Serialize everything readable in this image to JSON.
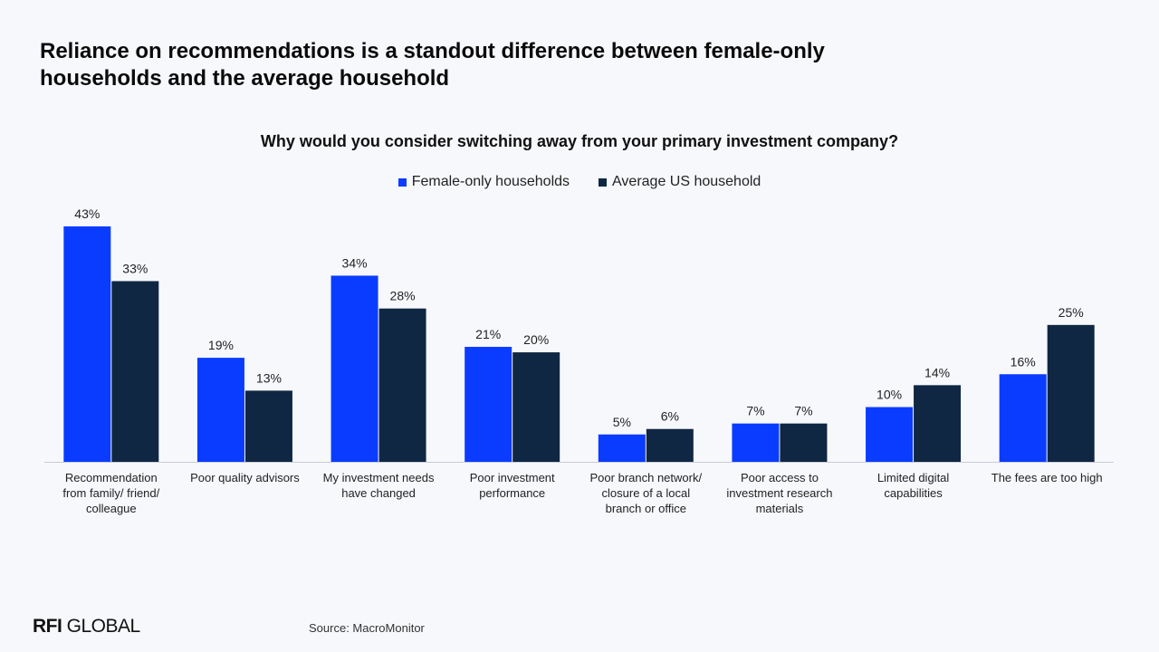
{
  "headline": "Reliance on recommendations is a standout difference between female-only households and the average household",
  "source": "Source: MacroMonitor",
  "logo": {
    "strong": "RFI",
    "rest": " GLOBAL"
  },
  "colors": {
    "female": "#0a3cff",
    "average": "#0f2742",
    "axis": "#c8ccd6"
  },
  "chart_data": {
    "type": "bar",
    "title": "Why would you consider switching away from your primary investment company?",
    "categories": [
      [
        "Recommendation",
        "from family/ friend/",
        "colleague"
      ],
      [
        "Poor quality advisors"
      ],
      [
        "My investment needs",
        "have changed"
      ],
      [
        "Poor investment",
        "performance"
      ],
      [
        "Poor branch network/",
        "closure of a local",
        "branch or office"
      ],
      [
        "Poor access to",
        "investment research",
        "materials"
      ],
      [
        "Limited digital",
        "capabilities"
      ],
      [
        "The fees are too high"
      ]
    ],
    "series": [
      {
        "name": "Female-only households",
        "values": [
          43,
          19,
          34,
          21,
          5,
          7,
          10,
          16
        ],
        "labels": [
          "43%",
          "19%",
          "34%",
          "21%",
          "5%",
          "7%",
          "10%",
          "16%"
        ]
      },
      {
        "name": "Average US household",
        "values": [
          33,
          13,
          28,
          20,
          6,
          7,
          14,
          25
        ],
        "labels": [
          "33%",
          "13%",
          "28%",
          "20%",
          "6%",
          "7%",
          "14%",
          "25%"
        ]
      }
    ],
    "ylim": [
      0,
      43
    ],
    "legend_position": "top-center",
    "grid": false
  }
}
